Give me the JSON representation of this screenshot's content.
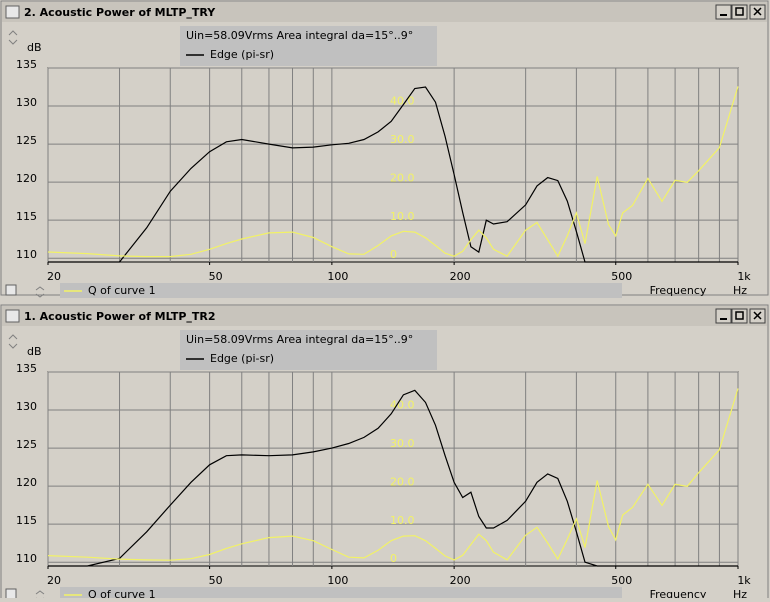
{
  "chart_data": [
    {
      "type": "line",
      "title": "2. Acoustic Power of MLTP_TRY",
      "subtitle": "Uin=58.09Vrms Area integral da=15°..9°",
      "ylabel": "dB",
      "xlabel": "Frequency",
      "xunit": "Hz",
      "xscale": "log",
      "x": [
        20,
        25,
        30,
        35,
        40,
        45,
        50,
        55,
        60,
        70,
        80,
        90,
        100,
        110,
        120,
        130,
        140,
        150,
        160,
        170,
        180,
        190,
        200,
        210,
        220,
        230,
        240,
        250,
        270,
        300,
        320,
        340,
        360,
        380,
        400,
        420,
        450,
        480,
        500,
        520,
        550,
        600,
        650,
        700,
        750,
        800,
        900,
        1000
      ],
      "xlim": [
        20,
        1000
      ],
      "xticks": [
        20,
        50,
        100,
        200,
        500,
        {
          "value": 1000,
          "label": "1k"
        }
      ],
      "xgrid": [
        20,
        30,
        40,
        50,
        60,
        70,
        80,
        90,
        100,
        200,
        300,
        400,
        500,
        600,
        700,
        800,
        900,
        1000
      ],
      "ylim": [
        109.5,
        135
      ],
      "yticks": [
        110,
        115,
        120,
        125,
        130,
        135
      ],
      "y2lim": [
        -1.8,
        48.8
      ],
      "y2ticks": [
        0,
        {
          "value": 10,
          "label": "10.0"
        },
        {
          "value": 20,
          "label": "20.0"
        },
        {
          "value": 30,
          "label": "30.0"
        },
        {
          "value": 40,
          "label": "40.0"
        }
      ],
      "grid": true,
      "series": [
        {
          "name": "Edge (pi-sr)",
          "color": "#000000",
          "values": [
            109.5,
            109.5,
            109.5,
            114,
            118.8,
            121.8,
            124,
            125.3,
            125.6,
            125,
            124.5,
            124.6,
            124.9,
            125.1,
            125.6,
            126.6,
            128,
            130.2,
            132.3,
            132.5,
            130.5,
            126,
            121,
            116,
            111.5,
            110.8,
            115,
            114.5,
            114.8,
            117,
            119.5,
            120.6,
            120.2,
            117.5,
            113.5,
            109.5,
            109.5,
            109.5,
            109.5,
            109.5,
            109.5,
            109.5,
            109.5,
            109.5,
            109.5,
            109.5,
            109.5,
            109.5
          ]
        },
        {
          "name": "Q of curve 1",
          "color": "#f2f266",
          "axis": "y2",
          "values": [
            0.8,
            0.4,
            -0.2,
            -0.4,
            -0.4,
            0.2,
            1.5,
            3,
            4.2,
            5.8,
            6,
            4.6,
            2.2,
            0.3,
            0.2,
            2.5,
            5,
            6.2,
            6,
            4.5,
            2.5,
            0.5,
            -0.3,
            1,
            4,
            6.5,
            4.5,
            1.5,
            -0.3,
            6.5,
            8.5,
            4,
            -0.3,
            5,
            11,
            3,
            20.5,
            8,
            5,
            11,
            13,
            20,
            14,
            19.5,
            19,
            22,
            28,
            44
          ]
        }
      ]
    },
    {
      "type": "line",
      "title": "1. Acoustic Power of MLTP_TR2",
      "subtitle": "Uin=58.09Vrms Area integral da=15°..9°",
      "ylabel": "dB",
      "xlabel": "Frequency",
      "xunit": "Hz",
      "xscale": "log",
      "x": [
        20,
        25,
        30,
        35,
        40,
        45,
        50,
        55,
        60,
        70,
        80,
        90,
        100,
        110,
        120,
        130,
        140,
        150,
        160,
        170,
        180,
        190,
        200,
        210,
        220,
        230,
        240,
        250,
        270,
        300,
        320,
        340,
        360,
        380,
        400,
        420,
        450,
        480,
        500,
        520,
        550,
        600,
        650,
        700,
        750,
        800,
        900,
        1000
      ],
      "xlim": [
        20,
        1000
      ],
      "xticks": [
        20,
        50,
        100,
        200,
        500,
        {
          "value": 1000,
          "label": "1k"
        }
      ],
      "xgrid": [
        20,
        30,
        40,
        50,
        60,
        70,
        80,
        90,
        100,
        200,
        300,
        400,
        500,
        600,
        700,
        800,
        900,
        1000
      ],
      "ylim": [
        109.5,
        135
      ],
      "yticks": [
        110,
        115,
        120,
        125,
        130,
        135
      ],
      "y2lim": [
        -1.8,
        48.8
      ],
      "y2ticks": [
        0,
        {
          "value": 10,
          "label": "10.0"
        },
        {
          "value": 20,
          "label": "20.0"
        },
        {
          "value": 30,
          "label": "30.0"
        },
        {
          "value": 40,
          "label": "40.0"
        }
      ],
      "grid": true,
      "series": [
        {
          "name": "Edge (pi-sr)",
          "color": "#000000",
          "values": [
            109.5,
            109.5,
            110.5,
            114,
            117.5,
            120.5,
            122.8,
            124,
            124.1,
            124,
            124.1,
            124.5,
            125,
            125.6,
            126.4,
            127.6,
            129.5,
            132,
            132.6,
            131,
            128,
            124,
            120.5,
            118.5,
            119.2,
            116,
            114.5,
            114.5,
            115.5,
            118,
            120.5,
            121.6,
            121,
            118,
            114,
            110,
            109.5,
            109.5,
            109.5,
            109.5,
            109.5,
            109.5,
            109.5,
            109.5,
            109.5,
            109.5,
            109.5,
            109.5
          ]
        },
        {
          "name": "Q of curve 1",
          "color": "#f2f266",
          "axis": "y2",
          "values": [
            0.9,
            0.5,
            0,
            -0.2,
            -0.3,
            0.1,
            1.2,
            2.8,
            4,
            5.6,
            6,
            4.8,
            2.5,
            0.5,
            0.3,
            2.3,
            4.8,
            6,
            6.1,
            4.8,
            2.8,
            0.8,
            -0.2,
            1,
            3.8,
            6.5,
            4.8,
            1.8,
            -0.2,
            6.2,
            8.3,
            4.2,
            0,
            5.2,
            10.5,
            3,
            20.5,
            8.5,
            5,
            11.5,
            13.5,
            19.5,
            14,
            19.5,
            19,
            22.5,
            28.5,
            44.5
          ]
        }
      ]
    }
  ]
}
